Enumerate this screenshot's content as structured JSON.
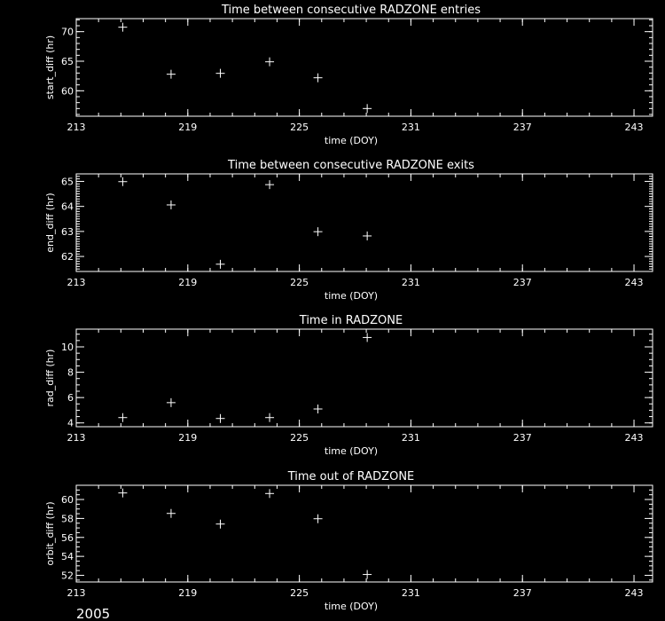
{
  "colors": {
    "background": "#000000",
    "foreground": "#ffffff"
  },
  "footer": {
    "year": "2005"
  },
  "chart_data": [
    {
      "type": "scatter",
      "marker": "plus",
      "title": "Time between consecutive RADZONE entries",
      "xlabel": "time (DOY)",
      "ylabel": "start_diff (hr)",
      "xlim": [
        213,
        244
      ],
      "ylim": [
        55.7,
        72.2
      ],
      "xticks": [
        213,
        219,
        225,
        231,
        237,
        243
      ],
      "xminor": 1.2,
      "yticks": [
        60,
        65,
        70
      ],
      "yminor": 1,
      "x": [
        215.5,
        218.1,
        220.75,
        223.4,
        226.0,
        228.65
      ],
      "y": [
        70.75,
        62.8,
        62.95,
        64.9,
        62.2,
        57.0
      ]
    },
    {
      "type": "scatter",
      "marker": "plus",
      "title": "Time between consecutive RADZONE exits",
      "xlabel": "time (DOY)",
      "ylabel": "end_diff (hr)",
      "xlim": [
        213,
        244
      ],
      "ylim": [
        61.4,
        65.3
      ],
      "xticks": [
        213,
        219,
        225,
        231,
        237,
        243
      ],
      "xminor": 1.2,
      "yticks": [
        62,
        63,
        64,
        65
      ],
      "yminor": 0.1,
      "x": [
        215.5,
        218.1,
        220.75,
        223.4,
        226.0,
        228.65
      ],
      "y": [
        64.99,
        64.06,
        61.69,
        64.87,
        62.99,
        62.82
      ]
    },
    {
      "type": "scatter",
      "marker": "plus",
      "title": "Time in RADZONE",
      "xlabel": "time (DOY)",
      "ylabel": "rad_diff (hr)",
      "xlim": [
        213,
        244
      ],
      "ylim": [
        3.7,
        11.4
      ],
      "xticks": [
        213,
        219,
        225,
        231,
        237,
        243
      ],
      "xminor": 1.2,
      "yticks": [
        4,
        6,
        8,
        10
      ],
      "yminor": 0.5,
      "x": [
        215.5,
        218.1,
        220.75,
        223.4,
        226.0,
        228.65
      ],
      "y": [
        4.42,
        5.6,
        4.35,
        4.42,
        5.1,
        10.74
      ]
    },
    {
      "type": "scatter",
      "marker": "plus",
      "title": "Time out of RADZONE",
      "xlabel": "time (DOY)",
      "ylabel": "orbit_diff (hr)",
      "xlim": [
        213,
        244
      ],
      "ylim": [
        51.3,
        61.5
      ],
      "xticks": [
        213,
        219,
        225,
        231,
        237,
        243
      ],
      "xminor": 1.2,
      "yticks": [
        52,
        54,
        56,
        58,
        60
      ],
      "yminor": 0.5,
      "x": [
        215.5,
        218.1,
        220.75,
        223.4,
        226.0,
        228.65
      ],
      "y": [
        60.69,
        58.53,
        57.41,
        60.63,
        57.97,
        52.09
      ]
    }
  ]
}
